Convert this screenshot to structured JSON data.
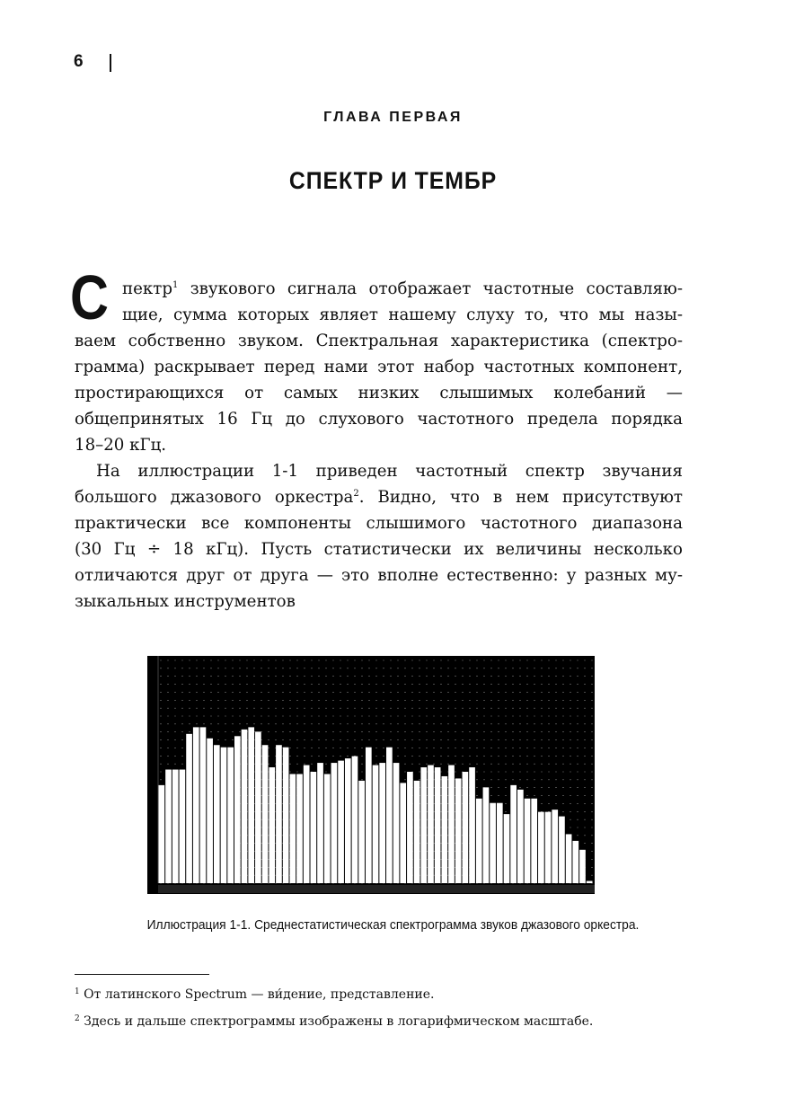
{
  "header": {
    "page_number": "6"
  },
  "chapter_label": "ГЛАВА ПЕРВАЯ",
  "chapter_title": "СПЕКТР И ТЕМБР",
  "body": {
    "drop_cap": "С",
    "paragraph1": [
      {
        "text": "пектр",
        "sup": "1",
        "rest": " звукового сигнала отображает частотные составляю-"
      },
      {
        "text": "щие, сумма которых являет нашему слуху то, что мы назы-"
      },
      {
        "text": "ваем собственно звуком. Спектральная характеристика (спектро-"
      },
      {
        "text": "грамма) раскрывает перед нами этот набор частотных компонент,"
      },
      {
        "text": "простирающихся от самых низких слышимых колебаний —"
      },
      {
        "text": "общепринятых 16 Гц до слухового частотного предела порядка"
      },
      {
        "text": "18–20 кГц."
      }
    ],
    "paragraph2": [
      {
        "text": "На иллюстрации 1-1 приведен частотный спектр звучания"
      },
      {
        "text": "большого джазового оркестра",
        "sup": "2",
        "rest": ". Видно, что в нем присутствуют"
      },
      {
        "text": "практически все компоненты слышимого частотного диапазона"
      },
      {
        "text": "(30 Гц ÷ 18 кГц). Пусть статистически их величины несколько"
      },
      {
        "text": "отличаются друг от друга — это вполне естественно: у разных му-"
      },
      {
        "text": "зыкальных инструментов"
      }
    ]
  },
  "chart_data": {
    "type": "bar",
    "title": "",
    "xlabel": "",
    "ylabel": "",
    "note": "relative level, fraction of full scale",
    "ylim": [
      0,
      1
    ],
    "grid": true,
    "colors": {
      "background": "#000000",
      "bar": "#ffffff",
      "grid": "#777777"
    },
    "values": [
      0.44,
      0.51,
      0.51,
      0.51,
      0.67,
      0.7,
      0.7,
      0.65,
      0.62,
      0.61,
      0.61,
      0.66,
      0.69,
      0.7,
      0.68,
      0.62,
      0.52,
      0.62,
      0.61,
      0.49,
      0.49,
      0.53,
      0.5,
      0.54,
      0.49,
      0.54,
      0.55,
      0.56,
      0.57,
      0.46,
      0.61,
      0.53,
      0.54,
      0.61,
      0.54,
      0.45,
      0.5,
      0.46,
      0.52,
      0.53,
      0.52,
      0.48,
      0.53,
      0.47,
      0.5,
      0.52,
      0.38,
      0.43,
      0.36,
      0.36,
      0.31,
      0.44,
      0.42,
      0.38,
      0.38,
      0.32,
      0.32,
      0.33,
      0.3,
      0.22,
      0.19,
      0.15,
      0.01
    ]
  },
  "caption": "Иллюстрация 1-1. Среднестатистическая спектрограмма звуков джазового оркестра.",
  "footnotes": [
    {
      "mark": "1",
      "text": " От латинского Spectrum — ви́дение, представление."
    },
    {
      "mark": "2",
      "text": " Здесь и дальше спектрограммы изображены в логарифмическом масштабе."
    }
  ]
}
